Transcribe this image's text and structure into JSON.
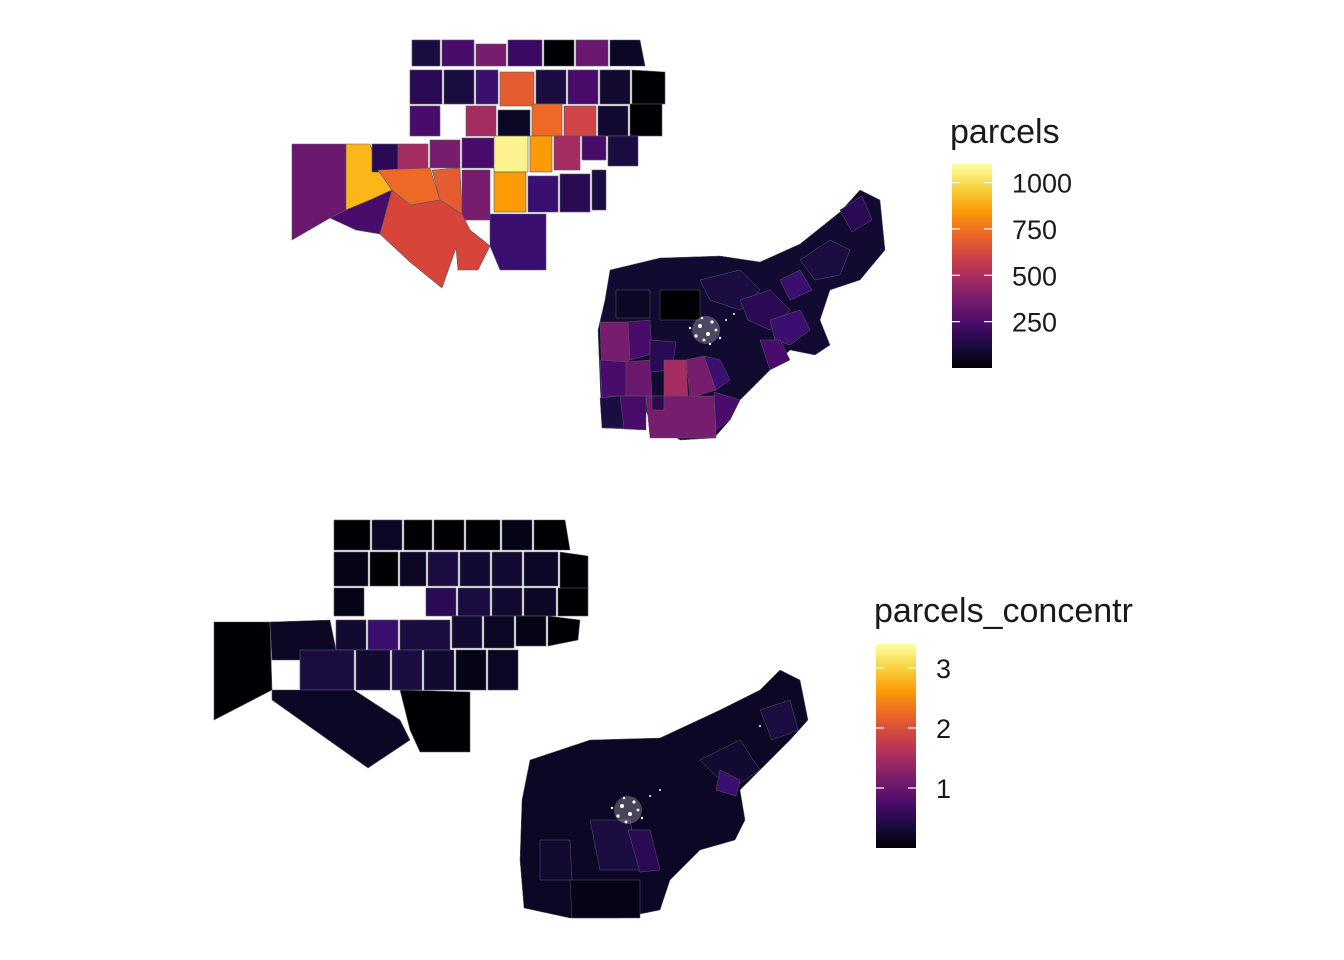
{
  "panels": [
    {
      "id": "parcels",
      "legend": {
        "title": "parcels",
        "ticks": [
          {
            "label": "1000",
            "value": 1000
          },
          {
            "label": "750",
            "value": 750
          },
          {
            "label": "500",
            "value": 500
          },
          {
            "label": "250",
            "value": 250
          }
        ],
        "min": 0,
        "max": 1100
      }
    },
    {
      "id": "parcels_concentr",
      "legend": {
        "title": "parcels_concentr",
        "ticks": [
          {
            "label": "3",
            "value": 3
          },
          {
            "label": "2",
            "value": 2
          },
          {
            "label": "1",
            "value": 1
          }
        ],
        "min": 0,
        "max": 3.4
      }
    }
  ],
  "colors": {
    "scale": [
      "#000004",
      "#1b0c41",
      "#4a0c6b",
      "#781c6d",
      "#a52c60",
      "#cf4446",
      "#ed6925",
      "#fb9b06",
      "#f7d13d",
      "#fcffa4"
    ],
    "background": "#ffffff",
    "border": "#5a5a66"
  }
}
